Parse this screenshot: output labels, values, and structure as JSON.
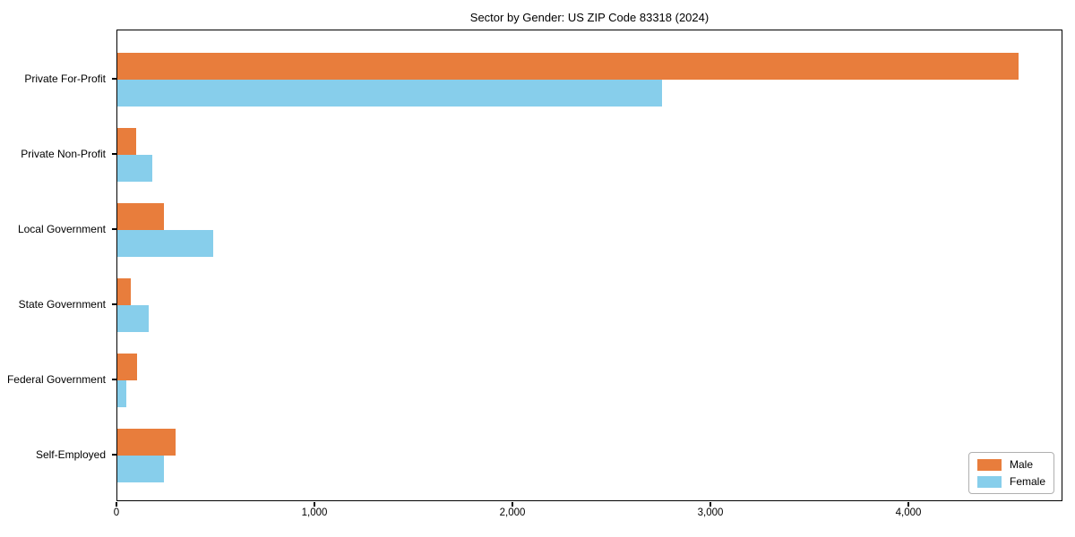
{
  "chart_data": {
    "type": "bar",
    "orientation": "horizontal",
    "title": "Sector by Gender: US ZIP Code 83318 (2024)",
    "categories": [
      "Private For-Profit",
      "Private Non-Profit",
      "Local Government",
      "State Government",
      "Federal Government",
      "Self-Employed"
    ],
    "series": [
      {
        "name": "Male",
        "color": "#E87D3C",
        "values": [
          4550,
          95,
          235,
          68,
          98,
          295
        ]
      },
      {
        "name": "Female",
        "color": "#87CEEB",
        "values": [
          2750,
          178,
          485,
          160,
          45,
          235
        ]
      }
    ],
    "xlabel": "",
    "ylabel": "",
    "xlim": [
      0,
      4778
    ],
    "x_ticks": [
      0,
      1000,
      2000,
      3000,
      4000
    ],
    "x_tick_labels": [
      "0",
      "1,000",
      "2,000",
      "3,000",
      "4,000"
    ],
    "grid": false,
    "legend_position": "lower right",
    "background_color": "#ffffff",
    "spine_color": "#000000"
  }
}
